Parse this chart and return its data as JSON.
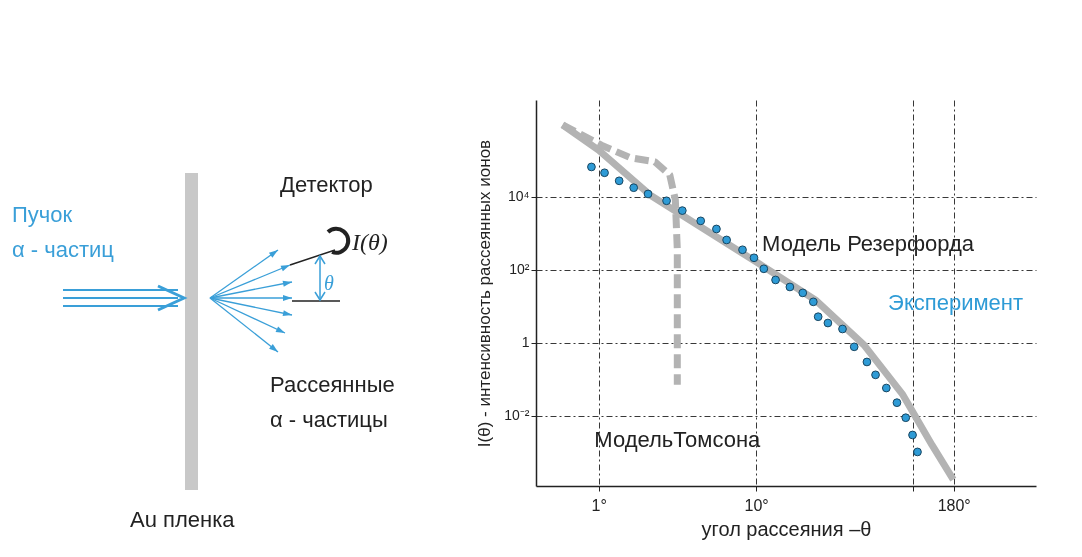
{
  "chart_data": [
    {
      "type": "other",
      "annotations": [
        "Пучок\nα - частиц",
        "Детектор",
        "I(θ)",
        "θ",
        "Рассеянные\nα - частицы",
        "Au пленка"
      ]
    },
    {
      "type": "scatter",
      "xlabel": "угол рассеяния –θ",
      "ylabel": "I(θ) - интенсивность рассеянных ионов",
      "log": "xy",
      "grid": true,
      "xlim": [
        0.4,
        600
      ],
      "xticks": [
        {
          "value": 1,
          "label": "1°"
        },
        {
          "value": 10,
          "label": "10°"
        },
        {
          "value": 100,
          "label": null
        },
        {
          "value": 180,
          "label": "180°"
        }
      ],
      "ylim": [
        0.00012,
        4500000
      ],
      "yticks": [
        {
          "value": 0.01,
          "label": "10⁻²"
        },
        1,
        {
          "value": 100,
          "label": "10²"
        },
        {
          "value": 10000,
          "label": "10⁴"
        }
      ],
      "series": [
        {
          "name": "Эксперимент",
          "type": "scatter",
          "marker": "circle",
          "color": "#2e9bd6",
          "x": [
            0.9,
            1.09,
            1.35,
            1.67,
            2.06,
            2.7,
            3.4,
            4.45,
            5.6,
            6.5,
            8.2,
            9.7,
            11.2,
            13.3,
            16.4,
            19.8,
            23.1,
            24.8,
            28.6,
            35.4,
            42,
            50.6,
            57.4,
            67.2,
            78.5,
            89.3,
            98.6,
            106
          ],
          "values": [
            66000,
            45700,
            27500,
            17800,
            12000,
            7800,
            4200,
            2200,
            1320,
            660,
            355,
            214,
            107,
            53,
            34,
            23.4,
            13.3,
            5.2,
            3.5,
            2.4,
            0.78,
            0.3,
            0.133,
            0.058,
            0.023,
            0.0089,
            0.003,
            0.00103
          ]
        },
        {
          "name": "Модель Резерфорда",
          "type": "line",
          "line_style": "solid",
          "color": "#b3b3b3",
          "x": [
            0.59,
            1,
            2.12,
            10,
            23.8,
            48.4,
            85.5,
            131,
            179
          ],
          "values": [
            940000,
            190000,
            11300,
            166,
            15,
            0.88,
            0.038,
            0.0016,
            0.00018
          ]
        },
        {
          "name": "МодельТомсона",
          "type": "line",
          "line_style": "dashed",
          "color": "#b3b3b3",
          "x": [
            0.59,
            1.04,
            1.6,
            2.28,
            2.83,
            3.07,
            3.16,
            3.16
          ],
          "values": [
            940000,
            260000,
            117000,
            91000,
            40000,
            8300,
            355,
            0.071
          ]
        }
      ]
    }
  ]
}
